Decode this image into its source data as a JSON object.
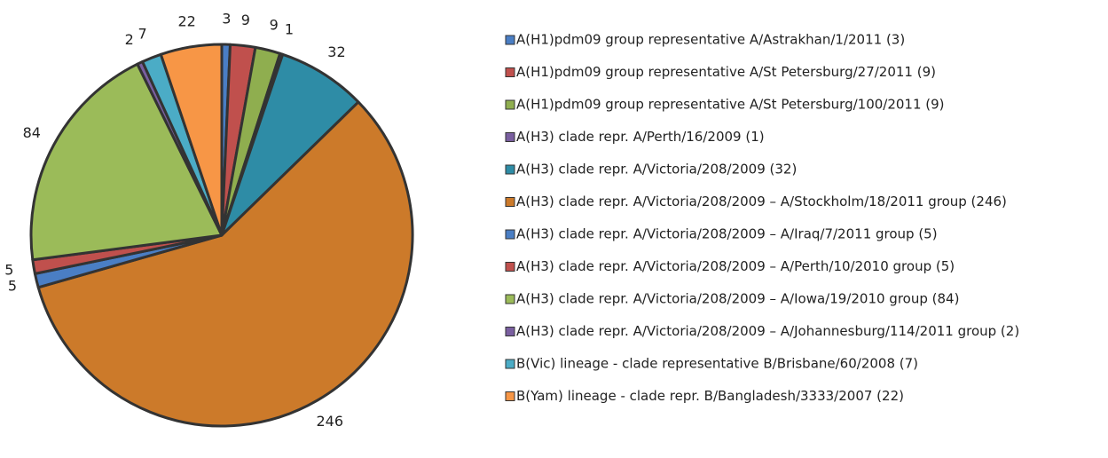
{
  "chart_data": {
    "type": "pie",
    "categories": [
      "A(H1)pdm09 group representative A/Astrakhan/1/2011 (3)",
      "A(H1)pdm09 group representative A/St Petersburg/27/2011 (9)",
      "A(H1)pdm09 group representative A/St Petersburg/100/2011 (9)",
      "A(H3) clade repr. A/Perth/16/2009 (1)",
      "A(H3) clade repr. A/Victoria/208/2009 (32)",
      "A(H3) clade repr. A/Victoria/208/2009 – A/Stockholm/18/2011 group (246)",
      "A(H3) clade repr. A/Victoria/208/2009 – A/Iraq/7/2011 group (5)",
      "A(H3) clade repr. A/Victoria/208/2009 – A/Perth/10/2010 group (5)",
      "A(H3) clade repr. A/Victoria/208/2009 – A/Iowa/19/2010 group (84)",
      "A(H3) clade repr. A/Victoria/208/2009 – A/Johannesburg/114/2011 group (2)",
      "B(Vic) lineage - clade representative B/Brisbane/60/2008  (7)",
      "B(Yam) lineage - clade repr. B/Bangladesh/3333/2007 (22)"
    ],
    "values": [
      3,
      9,
      9,
      1,
      32,
      246,
      5,
      5,
      84,
      2,
      7,
      22
    ],
    "colors": [
      "#4a7ec4",
      "#c0504d",
      "#8fae4f",
      "#7a5fa0",
      "#2e8ca6",
      "#cc7a2a",
      "#4a7ec4",
      "#c0504d",
      "#9bbb59",
      "#7a5fa0",
      "#4bacc6",
      "#f79646"
    ],
    "legend": "right"
  }
}
